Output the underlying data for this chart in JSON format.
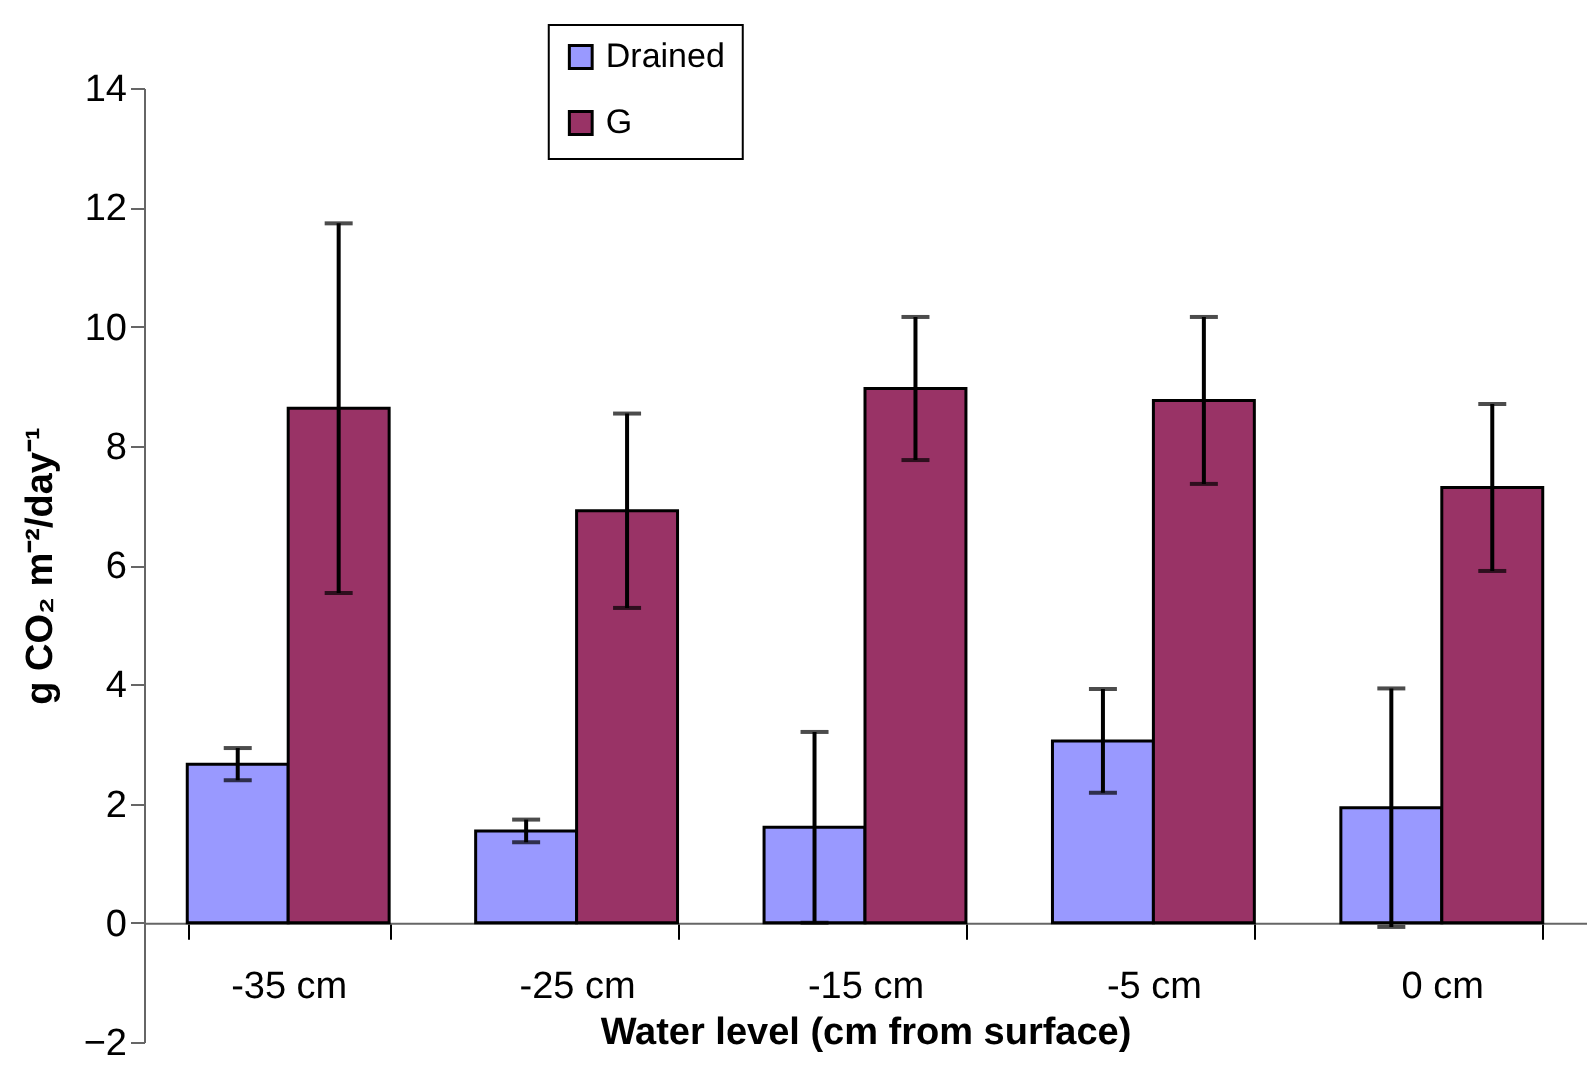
{
  "chart_data": {
    "type": "bar",
    "xlabel": "Water level (cm from surface)",
    "ylabel": "g CO₂ m⁻²/day⁻¹",
    "categories": [
      "-35 cm",
      "-25 cm",
      "-15 cm",
      "-5 cm",
      "0 cm"
    ],
    "series": [
      {
        "name": "Drained",
        "color": "#9999ff",
        "values": [
          2.66,
          1.54,
          1.6,
          3.05,
          1.93
        ],
        "errors": [
          0.27,
          0.19,
          1.6,
          0.87,
          2.0
        ]
      },
      {
        "name": "G",
        "color": "#993366",
        "values": [
          8.63,
          6.91,
          8.96,
          8.76,
          7.3
        ],
        "errors": [
          3.1,
          1.63,
          1.2,
          1.4,
          1.4
        ]
      }
    ],
    "ylim": [
      -2,
      14
    ],
    "yticks": [
      -2,
      0,
      2,
      4,
      6,
      8,
      10,
      12,
      14
    ],
    "grid": false,
    "legend": "top"
  }
}
